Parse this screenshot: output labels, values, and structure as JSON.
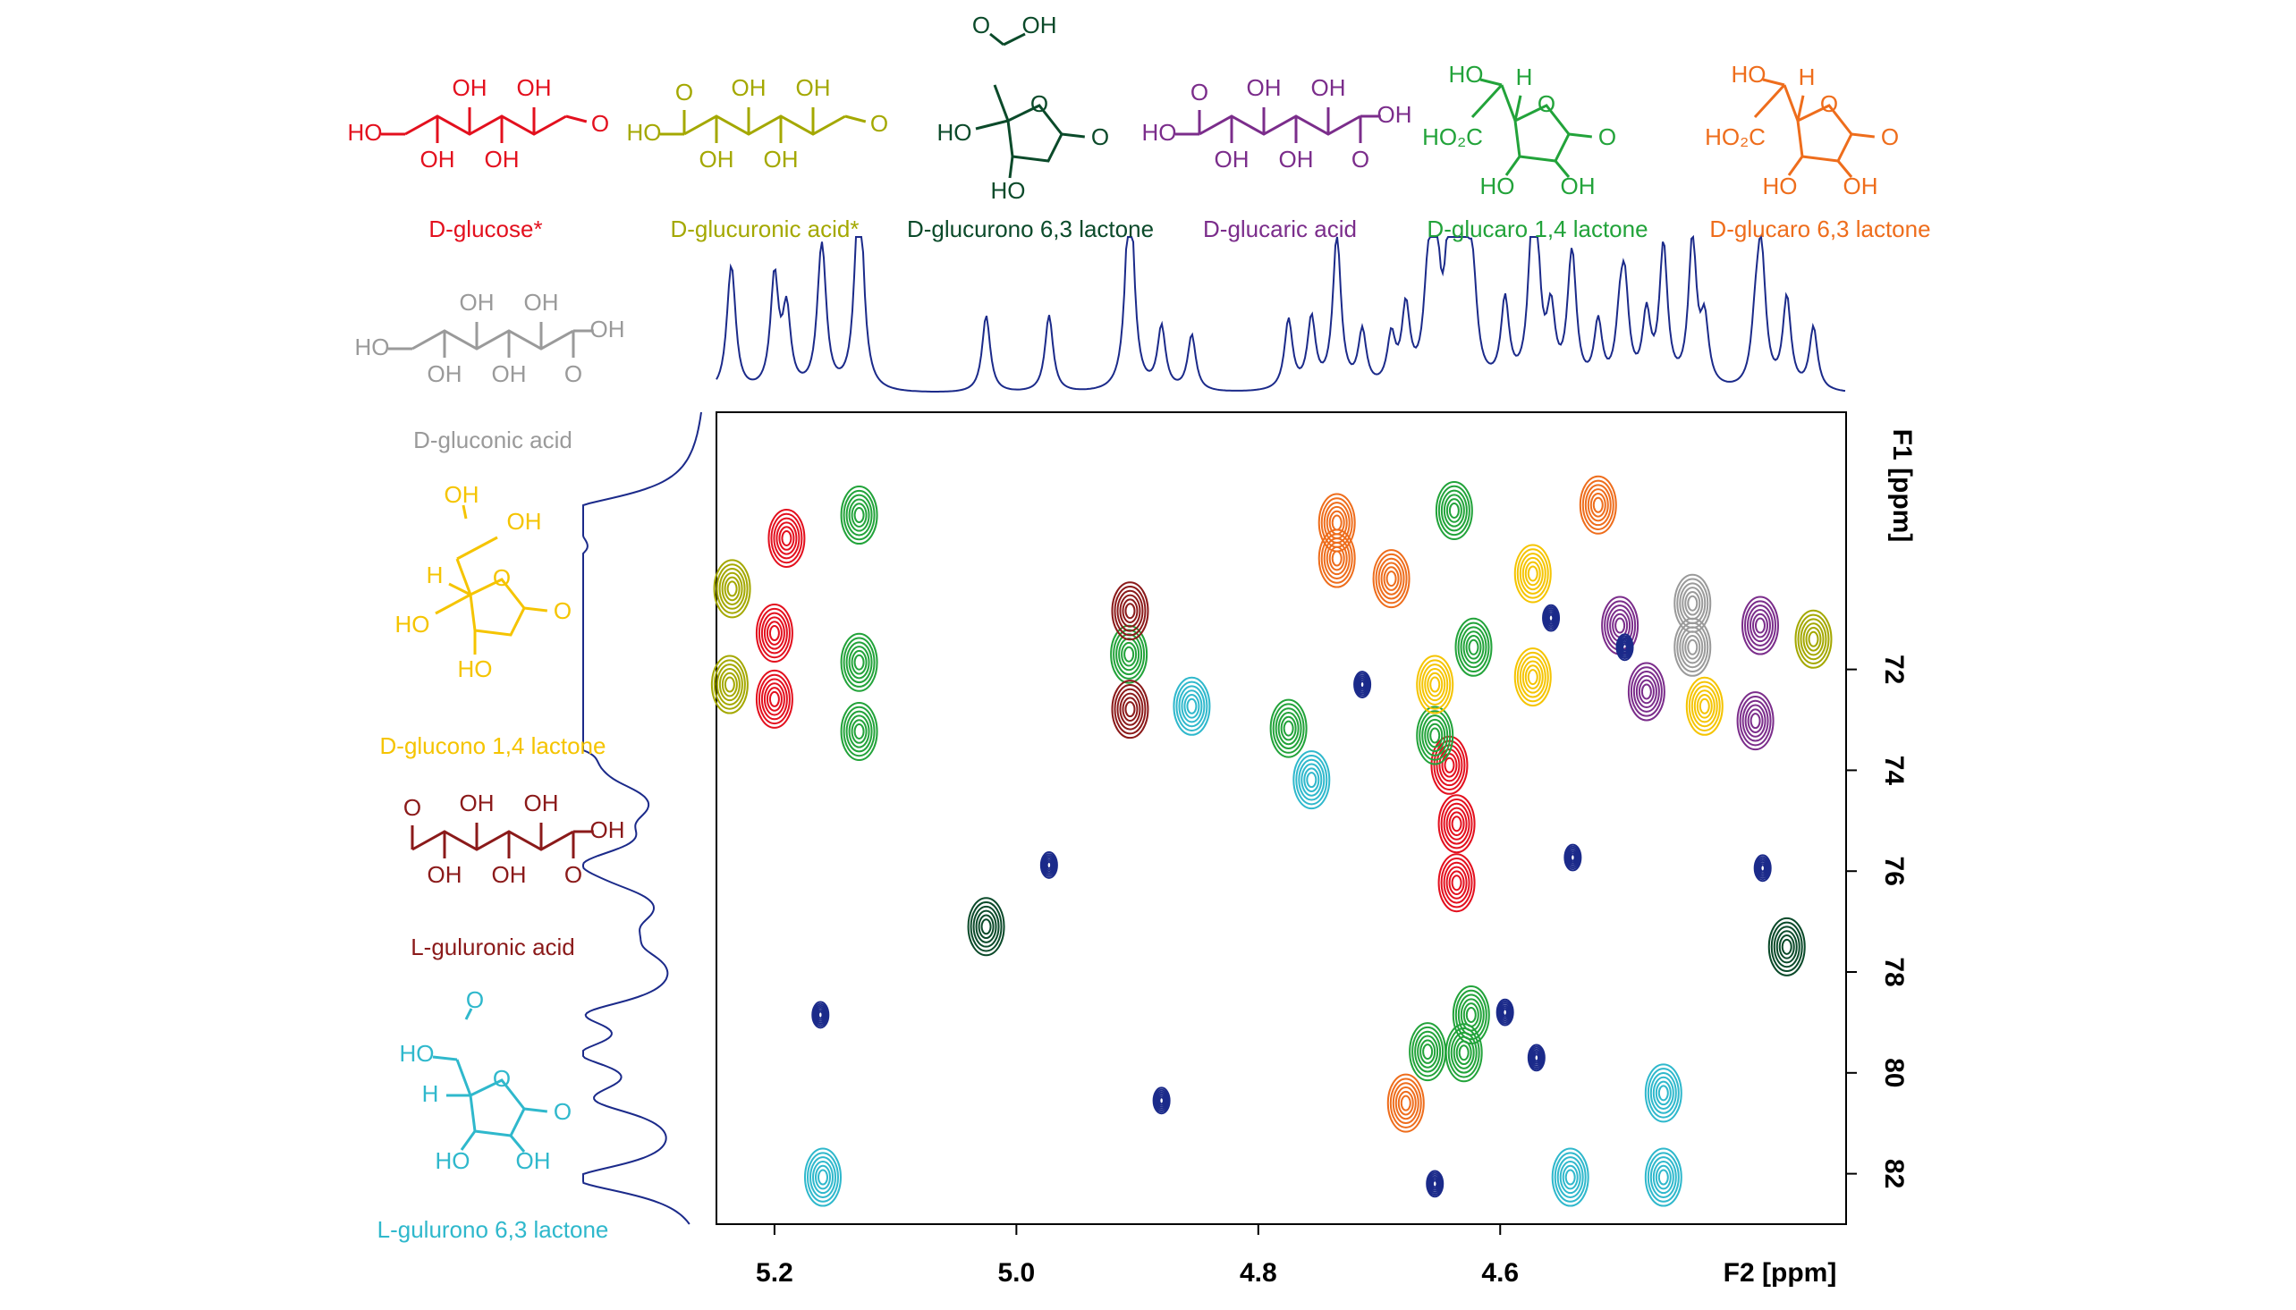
{
  "chart_data": {
    "type": "nmr2d",
    "xlabel": "F2 [ppm]",
    "ylabel": "F1 [ppm]",
    "xlim": [
      5.248,
      4.314
    ],
    "ylim": [
      66.9,
      83.0
    ],
    "xticks": [
      5.2,
      {
        "value": 5.0,
        "label": "5.0"
      },
      4.8,
      4.6
    ],
    "yticks": [
      72,
      74,
      76,
      78,
      80,
      82
    ],
    "series": [
      {
        "name": "D-glucose*",
        "color": "#e3101e",
        "atoms": [
          "HO",
          "OH",
          "OH",
          "OH",
          "OH",
          "O"
        ],
        "x": [
          5.2,
          5.2,
          5.19,
          4.642,
          4.636,
          4.636
        ],
        "y": [
          71.28,
          72.59,
          69.4,
          73.9,
          75.06,
          76.23
        ]
      },
      {
        "name": "D-glucuronic acid*",
        "color": "#a4a800",
        "atoms": [
          "HO",
          "O",
          "OH",
          "OH",
          "OH",
          "OH",
          "O"
        ],
        "x": [
          5.235,
          5.237,
          4.341
        ],
        "y": [
          70.4,
          72.3,
          71.4
        ]
      },
      {
        "name": "D-glucurono 6,3 lactone",
        "color": "#0b4a2a",
        "atoms": [
          "O",
          "OH",
          "HO",
          "HO",
          "O",
          "O"
        ],
        "x": [
          5.025,
          4.363
        ],
        "y": [
          77.1,
          77.5
        ]
      },
      {
        "name": "D-glucaric acid",
        "color": "#7b2d8b",
        "atoms": [
          "O",
          "HO",
          "OH",
          "OH",
          "OH",
          "OH",
          "OH",
          "O"
        ],
        "x": [
          4.501,
          4.479,
          4.385,
          4.389
        ],
        "y": [
          71.13,
          72.44,
          71.13,
          73.02
        ]
      },
      {
        "name": "D-glucaro 1,4 lactone",
        "color": "#22a33a",
        "atoms": [
          "HO",
          "H",
          "HO₂C",
          "O",
          "O",
          "HO",
          "OH"
        ],
        "x": [
          5.13,
          5.13,
          5.13,
          4.907,
          4.775,
          4.638,
          4.622,
          4.654,
          4.66,
          4.63,
          4.624
        ],
        "y": [
          68.94,
          71.86,
          73.23,
          71.7,
          73.17,
          68.85,
          71.56,
          73.31,
          79.58,
          79.6,
          78.85
        ]
      },
      {
        "name": "D-glucaro 6,3 lactone",
        "color": "#ee6d1c",
        "atoms": [
          "HO",
          "H",
          "HO₂C",
          "O",
          "O",
          "HO",
          "OH"
        ],
        "x": [
          4.735,
          4.735,
          4.69,
          4.519,
          4.678
        ],
        "y": [
          69.09,
          69.8,
          70.2,
          68.74,
          80.6
        ]
      },
      {
        "name": "D-gluconic acid",
        "color": "#9a9a9a",
        "atoms": [
          "HO",
          "OH",
          "OH",
          "OH",
          "OH",
          "OH",
          "O"
        ],
        "x": [
          4.441,
          4.441
        ],
        "y": [
          70.69,
          71.56
        ]
      },
      {
        "name": "D-glucono 1,4 lactone",
        "color": "#f5c400",
        "atoms": [
          "OH",
          "OH",
          "H",
          "HO",
          "O",
          "O",
          "HO"
        ],
        "x": [
          4.573,
          4.573,
          4.654,
          4.431
        ],
        "y": [
          70.1,
          72.15,
          72.3,
          72.73
        ]
      },
      {
        "name": "L-guluronic acid",
        "color": "#8b1a1a",
        "atoms": [
          "O",
          "OH",
          "OH",
          "OH",
          "OH",
          "OH",
          "O"
        ],
        "x": [
          4.906,
          4.906
        ],
        "y": [
          70.84,
          72.79
        ]
      },
      {
        "name": "L-gulurono 6,3 lactone",
        "color": "#2fb8cc",
        "atoms": [
          "O",
          "HO",
          "H",
          "O",
          "O",
          "HO",
          "OH"
        ],
        "x": [
          4.855,
          4.756,
          5.16,
          4.542,
          4.465,
          4.465
        ],
        "y": [
          72.73,
          74.19,
          82.07,
          82.07,
          82.07,
          80.4
        ]
      },
      {
        "color": "#1b2a8a",
        "x": [
          4.497,
          4.714,
          4.558,
          4.596,
          4.654,
          4.88,
          4.973,
          4.54,
          4.383,
          5.162,
          4.57
        ],
        "y": [
          71.56,
          72.3,
          70.98,
          78.8,
          82.2,
          80.55,
          75.88,
          75.73,
          75.94,
          78.85,
          79.7
        ]
      }
    ]
  }
}
